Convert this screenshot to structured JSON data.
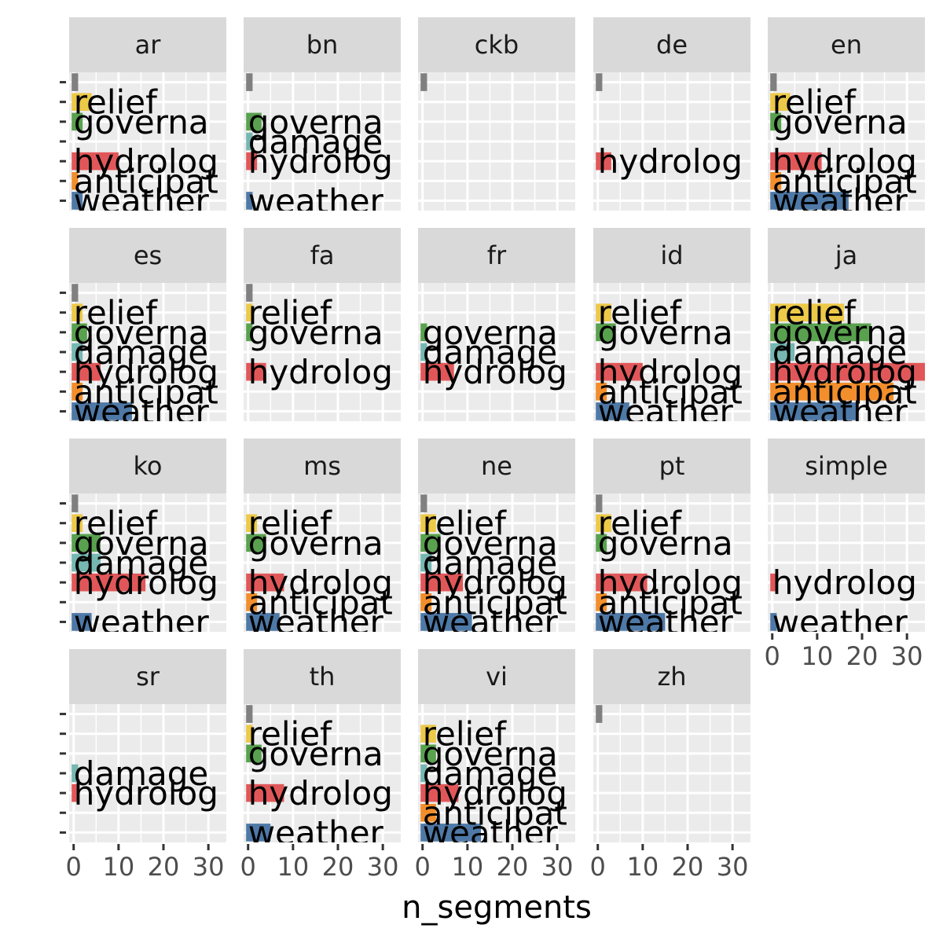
{
  "chart_data": {
    "type": "bar",
    "orientation": "horizontal",
    "facet": "language",
    "xlabel": "n_segments",
    "ylabel": "",
    "xlim": [
      -1,
      34
    ],
    "xticks": [
      0,
      10,
      20,
      30
    ],
    "grid": true,
    "legend": "none",
    "y_slots": 7,
    "categories": [
      "weather",
      "anticipat",
      "hydrolog",
      "damage",
      "governa",
      "relief",
      ""
    ],
    "category_colors": {
      "weather": "#4e79a7",
      "anticipat": "#f28e2b",
      "hydrolog": "#e15759",
      "damage": "#76b7b2",
      "governa": "#59a14f",
      "relief": "#edc948",
      "": "#808080"
    },
    "panels": [
      {
        "lang": "ar",
        "bars": [
          {
            "category": "weather",
            "value": 2
          },
          {
            "category": "anticipat",
            "value": 1
          },
          {
            "category": "hydrolog",
            "value": 10
          },
          {
            "category": "governa",
            "value": 2
          },
          {
            "category": "relief",
            "value": 4
          },
          {
            "category": "",
            "value": 1
          }
        ]
      },
      {
        "lang": "bn",
        "bars": [
          {
            "category": "weather",
            "value": 1
          },
          {
            "category": "hydrolog",
            "value": 2
          },
          {
            "category": "damage",
            "value": 1
          },
          {
            "category": "governa",
            "value": 3
          },
          {
            "category": "",
            "value": 1
          }
        ]
      },
      {
        "lang": "ckb",
        "bars": [
          {
            "category": "",
            "value": 1
          }
        ]
      },
      {
        "lang": "de",
        "bars": [
          {
            "category": "hydrolog",
            "value": 3
          },
          {
            "category": "",
            "value": 1
          }
        ]
      },
      {
        "lang": "en",
        "bars": [
          {
            "category": "weather",
            "value": 17
          },
          {
            "category": "anticipat",
            "value": 2
          },
          {
            "category": "hydrolog",
            "value": 11
          },
          {
            "category": "governa",
            "value": 2
          },
          {
            "category": "relief",
            "value": 4
          },
          {
            "category": "",
            "value": 1
          }
        ]
      },
      {
        "lang": "es",
        "bars": [
          {
            "category": "weather",
            "value": 13
          },
          {
            "category": "anticipat",
            "value": 2
          },
          {
            "category": "hydrolog",
            "value": 6
          },
          {
            "category": "damage",
            "value": 2
          },
          {
            "category": "governa",
            "value": 3
          },
          {
            "category": "relief",
            "value": 2
          },
          {
            "category": "",
            "value": 1
          }
        ]
      },
      {
        "lang": "fa",
        "bars": [
          {
            "category": "hydrolog",
            "value": 4
          },
          {
            "category": "governa",
            "value": 1
          },
          {
            "category": "relief",
            "value": 1
          },
          {
            "category": "",
            "value": 1
          }
        ]
      },
      {
        "lang": "fr",
        "bars": [
          {
            "category": "hydrolog",
            "value": 7
          },
          {
            "category": "damage",
            "value": 1
          },
          {
            "category": "governa",
            "value": 1
          }
        ]
      },
      {
        "lang": "id",
        "bars": [
          {
            "category": "weather",
            "value": 7
          },
          {
            "category": "anticipat",
            "value": 2
          },
          {
            "category": "hydrolog",
            "value": 10
          },
          {
            "category": "governa",
            "value": 4
          },
          {
            "category": "relief",
            "value": 3
          }
        ]
      },
      {
        "lang": "ja",
        "bars": [
          {
            "category": "weather",
            "value": 19
          },
          {
            "category": "anticipat",
            "value": 27
          },
          {
            "category": "hydrolog",
            "value": 34
          },
          {
            "category": "damage",
            "value": 5
          },
          {
            "category": "governa",
            "value": 22
          },
          {
            "category": "relief",
            "value": 16
          }
        ]
      },
      {
        "lang": "ko",
        "bars": [
          {
            "category": "weather",
            "value": 4
          },
          {
            "category": "hydrolog",
            "value": 16
          },
          {
            "category": "damage",
            "value": 6
          },
          {
            "category": "governa",
            "value": 6
          },
          {
            "category": "relief",
            "value": 2
          },
          {
            "category": "",
            "value": 1
          }
        ]
      },
      {
        "lang": "ms",
        "bars": [
          {
            "category": "weather",
            "value": 7
          },
          {
            "category": "anticipat",
            "value": 2
          },
          {
            "category": "hydrolog",
            "value": 8
          },
          {
            "category": "governa",
            "value": 4
          },
          {
            "category": "relief",
            "value": 2
          }
        ]
      },
      {
        "lang": "ne",
        "bars": [
          {
            "category": "weather",
            "value": 11
          },
          {
            "category": "anticipat",
            "value": 2
          },
          {
            "category": "hydrolog",
            "value": 9
          },
          {
            "category": "damage",
            "value": 2
          },
          {
            "category": "governa",
            "value": 4
          },
          {
            "category": "relief",
            "value": 3
          },
          {
            "category": "",
            "value": 1
          }
        ]
      },
      {
        "lang": "pt",
        "bars": [
          {
            "category": "weather",
            "value": 15
          },
          {
            "category": "anticipat",
            "value": 2
          },
          {
            "category": "hydrolog",
            "value": 11
          },
          {
            "category": "governa",
            "value": 2
          },
          {
            "category": "relief",
            "value": 3
          },
          {
            "category": "",
            "value": 1
          }
        ]
      },
      {
        "lang": "simple",
        "bars": [
          {
            "category": "weather",
            "value": 1
          },
          {
            "category": "hydrolog",
            "value": 1
          }
        ]
      },
      {
        "lang": "sr",
        "bars": [
          {
            "category": "hydrolog",
            "value": 1
          },
          {
            "category": "damage",
            "value": 1
          }
        ]
      },
      {
        "lang": "th",
        "bars": [
          {
            "category": "weather",
            "value": 5
          },
          {
            "category": "hydrolog",
            "value": 8
          },
          {
            "category": "governa",
            "value": 3
          },
          {
            "category": "relief",
            "value": 1
          },
          {
            "category": "",
            "value": 1
          }
        ]
      },
      {
        "lang": "vi",
        "bars": [
          {
            "category": "weather",
            "value": 13
          },
          {
            "category": "anticipat",
            "value": 3
          },
          {
            "category": "hydrolog",
            "value": 8
          },
          {
            "category": "damage",
            "value": 1
          },
          {
            "category": "governa",
            "value": 3
          },
          {
            "category": "relief",
            "value": 3
          }
        ]
      },
      {
        "lang": "zh",
        "bars": [
          {
            "category": "",
            "value": 1
          }
        ]
      }
    ]
  }
}
